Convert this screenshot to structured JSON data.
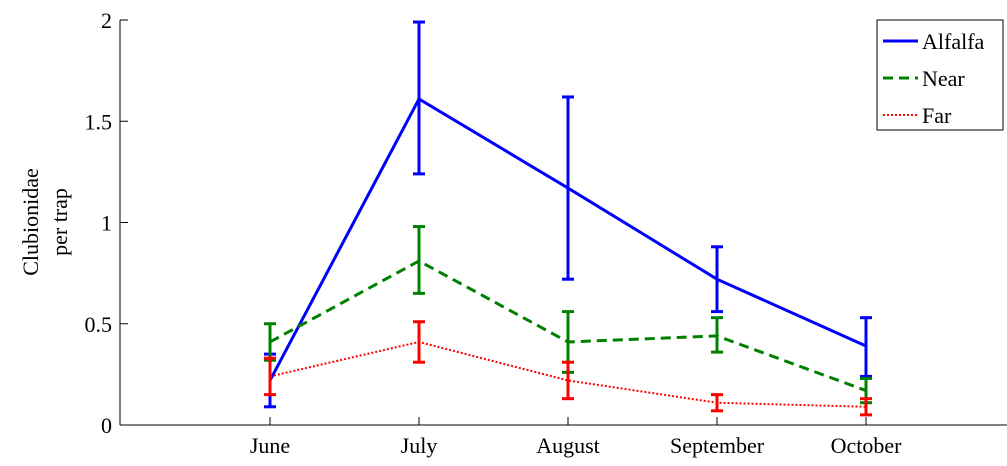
{
  "chart_data": {
    "type": "line",
    "title": "",
    "xlabel": "",
    "ylabel_lines": [
      "Clubionidae",
      "per trap"
    ],
    "categories": [
      "June",
      "July",
      "August",
      "September",
      "October"
    ],
    "ylim": [
      0,
      2
    ],
    "yticks": [
      0,
      0.5,
      1,
      1.5,
      2
    ],
    "ytick_labels": [
      "0",
      "0.5",
      "1",
      "1.5",
      "2"
    ],
    "grid": false,
    "legend_position": "top-right",
    "series": [
      {
        "name": "Alfalfa",
        "color": "#0000ff",
        "style": "solid",
        "values": [
          0.22,
          1.61,
          1.17,
          0.72,
          0.39
        ],
        "err_low": [
          0.09,
          1.24,
          0.72,
          0.56,
          0.24
        ],
        "err_high": [
          0.35,
          1.99,
          1.62,
          0.88,
          0.53
        ]
      },
      {
        "name": "Near",
        "color": "#008000",
        "style": "dashed",
        "values": [
          0.41,
          0.81,
          0.41,
          0.44,
          0.17
        ],
        "err_low": [
          0.32,
          0.65,
          0.26,
          0.36,
          0.11
        ],
        "err_high": [
          0.5,
          0.98,
          0.56,
          0.53,
          0.23
        ]
      },
      {
        "name": "Far",
        "color": "#ff0000",
        "style": "dotted",
        "values": [
          0.24,
          0.41,
          0.22,
          0.11,
          0.09
        ],
        "err_low": [
          0.15,
          0.31,
          0.13,
          0.07,
          0.05
        ],
        "err_high": [
          0.33,
          0.51,
          0.31,
          0.15,
          0.13
        ]
      }
    ]
  }
}
